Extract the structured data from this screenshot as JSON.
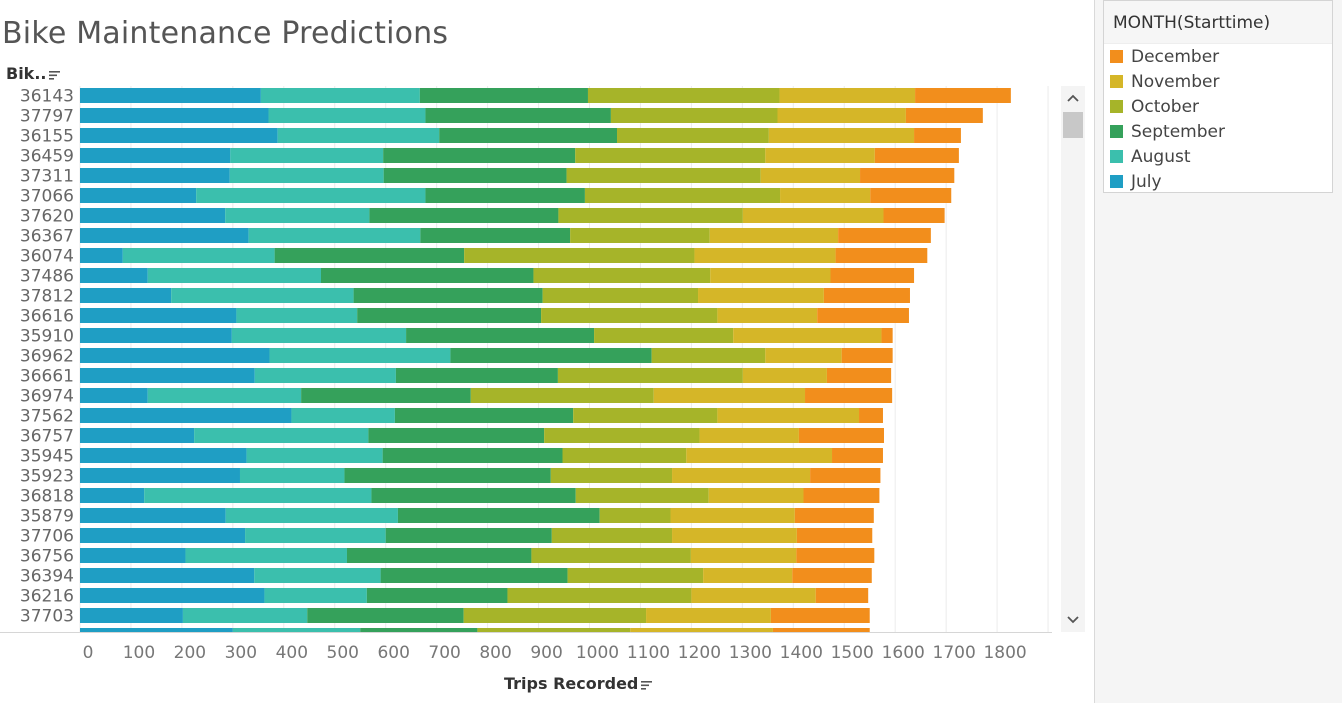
{
  "title": "Bike Maintenance Predictions",
  "row_header": "Bik..",
  "legend": {
    "title": "MONTH(Starttime)",
    "items": [
      {
        "label": "December",
        "color": "#f28e1c"
      },
      {
        "label": "November",
        "color": "#d5b628"
      },
      {
        "label": "October",
        "color": "#a6b429"
      },
      {
        "label": "September",
        "color": "#35a15b"
      },
      {
        "label": "August",
        "color": "#3bbfad"
      },
      {
        "label": "July",
        "color": "#1f9ec4"
      }
    ]
  },
  "chart_data": {
    "type": "bar",
    "orientation": "horizontal",
    "stacked": true,
    "xlabel": "Trips Recorded",
    "xlim": [
      0,
      1900
    ],
    "xticks": [
      0,
      100,
      200,
      300,
      400,
      500,
      600,
      700,
      800,
      900,
      1000,
      1100,
      1200,
      1300,
      1400,
      1500,
      1600,
      1700,
      1800
    ],
    "grid": "vertical",
    "legend_position": "right",
    "categories": [
      "36143",
      "37797",
      "36155",
      "36459",
      "37311",
      "37066",
      "37620",
      "36367",
      "36074",
      "37486",
      "37812",
      "36616",
      "35910",
      "36962",
      "36661",
      "36974",
      "37562",
      "36757",
      "35945",
      "35923",
      "36818",
      "35879",
      "37706",
      "36756",
      "36394",
      "36216",
      "37703"
    ],
    "series": [
      {
        "name": "July",
        "color": "#1f9ec4",
        "values": [
          355,
          370,
          388,
          295,
          294,
          228,
          285,
          331,
          84,
          133,
          179,
          307,
          298,
          372,
          343,
          133,
          415,
          224,
          327,
          314,
          126,
          286,
          324,
          207,
          342,
          362,
          202
        ]
      },
      {
        "name": "August",
        "color": "#3bbfad",
        "values": [
          312,
          308,
          317,
          300,
          302,
          450,
          283,
          337,
          298,
          340,
          358,
          237,
          342,
          355,
          277,
          301,
          203,
          342,
          267,
          205,
          446,
          338,
          276,
          317,
          248,
          201,
          244
        ]
      },
      {
        "name": "September",
        "color": "#35a15b",
        "values": [
          330,
          364,
          349,
          377,
          359,
          313,
          371,
          294,
          372,
          417,
          371,
          361,
          369,
          395,
          318,
          333,
          350,
          345,
          353,
          405,
          401,
          396,
          326,
          362,
          367,
          276,
          307
        ]
      },
      {
        "name": "October",
        "color": "#a6b429",
        "values": [
          376,
          327,
          298,
          373,
          381,
          383,
          362,
          274,
          452,
          347,
          305,
          346,
          273,
          223,
          363,
          359,
          283,
          305,
          243,
          238,
          261,
          139,
          236,
          313,
          266,
          361,
          358
        ]
      },
      {
        "name": "November",
        "color": "#d5b628",
        "values": [
          266,
          252,
          285,
          215,
          195,
          177,
          276,
          252,
          277,
          236,
          247,
          196,
          291,
          150,
          165,
          297,
          278,
          195,
          286,
          271,
          186,
          244,
          245,
          207,
          175,
          244,
          245
        ]
      },
      {
        "name": "December",
        "color": "#f28e1c",
        "values": [
          188,
          151,
          92,
          165,
          185,
          159,
          120,
          182,
          180,
          164,
          169,
          180,
          22,
          100,
          126,
          171,
          47,
          167,
          100,
          138,
          149,
          155,
          148,
          153,
          156,
          103,
          194
        ]
      }
    ]
  }
}
